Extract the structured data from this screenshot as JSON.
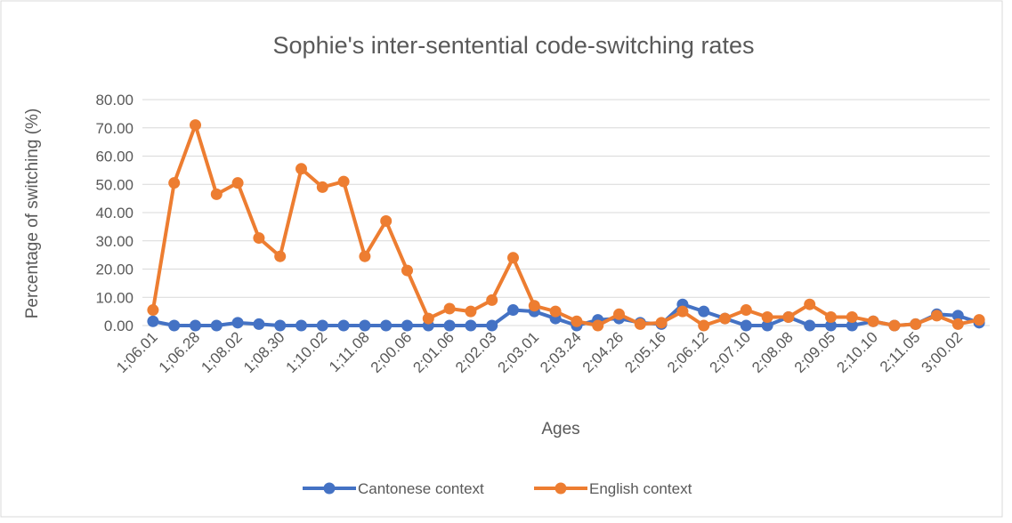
{
  "chart_data": {
    "type": "line",
    "title": "Sophie's inter-sentential code-switching rates",
    "x_label": "Ages",
    "y_label": "Percentage of switching (%)",
    "categories": [
      "1;06.01",
      null,
      "1;06.28",
      null,
      "1;08.02",
      null,
      "1;08.30",
      null,
      "1;10.02",
      null,
      "1;11.08",
      null,
      "2;00.06",
      null,
      "2;01.06",
      null,
      "2;02.03",
      null,
      "2;03.01",
      null,
      "2;03.24",
      null,
      "2;04.26",
      null,
      "2;05.16",
      null,
      "2;06.12",
      null,
      "2;07.10",
      null,
      "2;08.08",
      null,
      "2;09.05",
      null,
      "2;10.10",
      null,
      "2;11.05",
      null,
      "3;00.02",
      null
    ],
    "series": [
      {
        "name": "Cantonese context",
        "color": "#4472c4",
        "values": [
          1.5,
          0,
          0,
          0,
          1,
          0.5,
          0,
          0,
          0,
          0,
          0,
          0,
          0,
          0,
          0,
          0,
          0,
          5.5,
          5,
          2.5,
          0,
          2,
          2.5,
          1,
          0.5,
          7.5,
          5,
          2.5,
          0,
          0,
          3,
          0,
          0,
          0,
          1.5,
          0,
          0.5,
          4,
          3.5,
          1
        ]
      },
      {
        "name": "English context",
        "color": "#ed7d31",
        "values": [
          5.5,
          50.5,
          71,
          46.5,
          50.5,
          31,
          24.5,
          55.5,
          49,
          51,
          24.5,
          37,
          19.5,
          2.5,
          6,
          5,
          9,
          24,
          7,
          5,
          1.5,
          0,
          4,
          0.5,
          1,
          5,
          0,
          2.5,
          5.5,
          3,
          3,
          7.5,
          3,
          3,
          1.5,
          0,
          0.5,
          3.5,
          0.5,
          2
        ]
      }
    ],
    "ylim": [
      0,
      80
    ],
    "yticks": [
      {
        "value": 0,
        "label": "0.00"
      },
      {
        "value": 10,
        "label": "10.00"
      },
      {
        "value": 20,
        "label": "20.00"
      },
      {
        "value": 30,
        "label": "30.00"
      },
      {
        "value": 40,
        "label": "40.00"
      },
      {
        "value": 50,
        "label": "50.00"
      },
      {
        "value": 60,
        "label": "60.00"
      },
      {
        "value": 70,
        "label": "70.00"
      },
      {
        "value": 80,
        "label": "80.00"
      }
    ],
    "grid": true,
    "legend": "bottom"
  }
}
